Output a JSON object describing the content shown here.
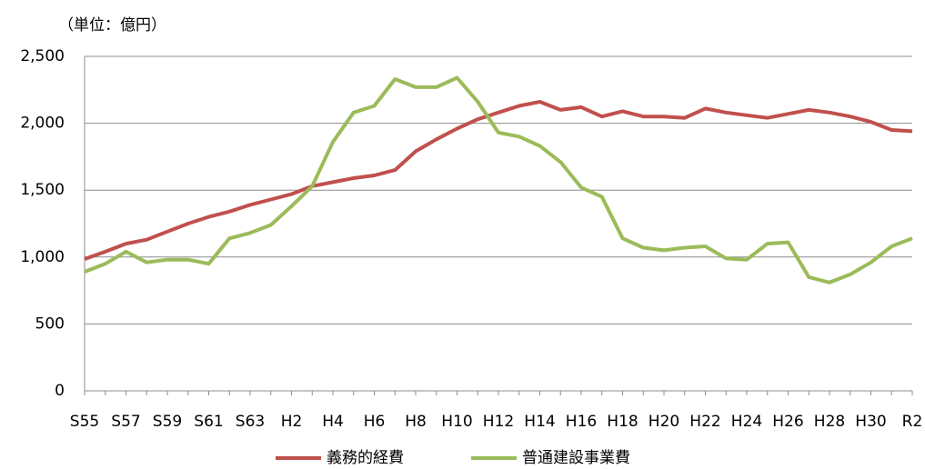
{
  "chart_data": {
    "type": "line",
    "unit_label": "（単位：億円）",
    "categories": [
      "S55",
      null,
      "S57",
      null,
      "S59",
      null,
      "S61",
      null,
      "S63",
      null,
      "H2",
      null,
      "H4",
      null,
      "H6",
      null,
      "H8",
      null,
      "H10",
      null,
      "H12",
      null,
      "H14",
      null,
      "H16",
      null,
      "H18",
      null,
      "H20",
      null,
      "H22",
      null,
      "H24",
      null,
      "H26",
      null,
      "H28",
      null,
      "H30",
      null,
      "R2"
    ],
    "series": [
      {
        "name": "義務的経費",
        "color": "#c0504d",
        "values": [
          985,
          1040,
          1100,
          1130,
          1190,
          1250,
          1300,
          1340,
          1390,
          1430,
          1470,
          1530,
          1560,
          1590,
          1610,
          1650,
          1790,
          1880,
          1960,
          2030,
          2080,
          2130,
          2160,
          2100,
          2120,
          2050,
          2090,
          2050,
          2050,
          2040,
          2110,
          2080,
          2060,
          2040,
          2070,
          2100,
          2080,
          2050,
          2010,
          1950,
          1940
        ]
      },
      {
        "name": "普通建設事業費",
        "color": "#9bbb59",
        "values": [
          890,
          950,
          1040,
          960,
          980,
          980,
          950,
          1140,
          1180,
          1240,
          1380,
          1530,
          1860,
          2080,
          2130,
          2330,
          2270,
          2270,
          2340,
          2160,
          1930,
          1900,
          1830,
          1710,
          1520,
          1450,
          1140,
          1070,
          1050,
          1070,
          1080,
          990,
          980,
          1100,
          1110,
          850,
          810,
          870,
          960,
          1080,
          1140
        ]
      }
    ],
    "ylim": [
      0,
      2500
    ],
    "yticks": [
      0,
      500,
      {
        "value": 1000,
        "label": "1,000"
      },
      {
        "value": 1500,
        "label": "1,500"
      },
      {
        "value": 2000,
        "label": "2,000"
      },
      {
        "value": 2500,
        "label": "2,500"
      }
    ],
    "grid": true,
    "legend": "bottom"
  }
}
